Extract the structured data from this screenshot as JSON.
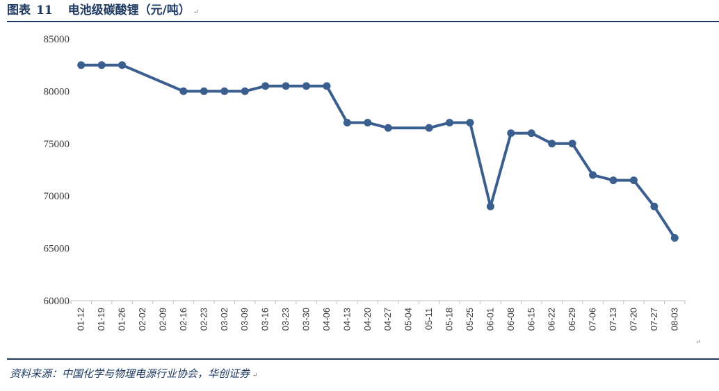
{
  "header": {
    "figure_label": "图表",
    "figure_number": "11",
    "title": "电池级碳酸锂（元/吨）"
  },
  "footer": {
    "source": "资料来源：中国化学与物理电源行业协会，华创证券"
  },
  "colors": {
    "series": "#3a5f8f",
    "rule": "#1f3b64",
    "axis": "#bfbfbf"
  },
  "chart_data": {
    "type": "line",
    "title": "电池级碳酸锂（元/吨）",
    "xlabel": "",
    "ylabel": "",
    "ylim": [
      60000,
      85000
    ],
    "yticks": [
      60000,
      65000,
      70000,
      75000,
      80000,
      85000
    ],
    "grid": false,
    "legend": "none",
    "categories": [
      "01-12",
      "01-19",
      "01-26",
      "02-02",
      "02-09",
      "02-16",
      "02-23",
      "03-02",
      "03-09",
      "03-16",
      "03-23",
      "03-30",
      "04-06",
      "04-13",
      "04-20",
      "04-27",
      "05-04",
      "05-11",
      "05-18",
      "05-25",
      "06-01",
      "06-08",
      "06-15",
      "06-22",
      "06-29",
      "07-06",
      "07-13",
      "07-20",
      "07-27",
      "08-03"
    ],
    "series": [
      {
        "values": [
          82500,
          82500,
          82500,
          null,
          null,
          80000,
          80000,
          80000,
          80000,
          80500,
          80500,
          80500,
          80500,
          77000,
          77000,
          76500,
          null,
          76500,
          77000,
          77000,
          69000,
          76000,
          76000,
          75000,
          75000,
          72000,
          71500,
          71500,
          69000,
          66000
        ]
      }
    ]
  }
}
